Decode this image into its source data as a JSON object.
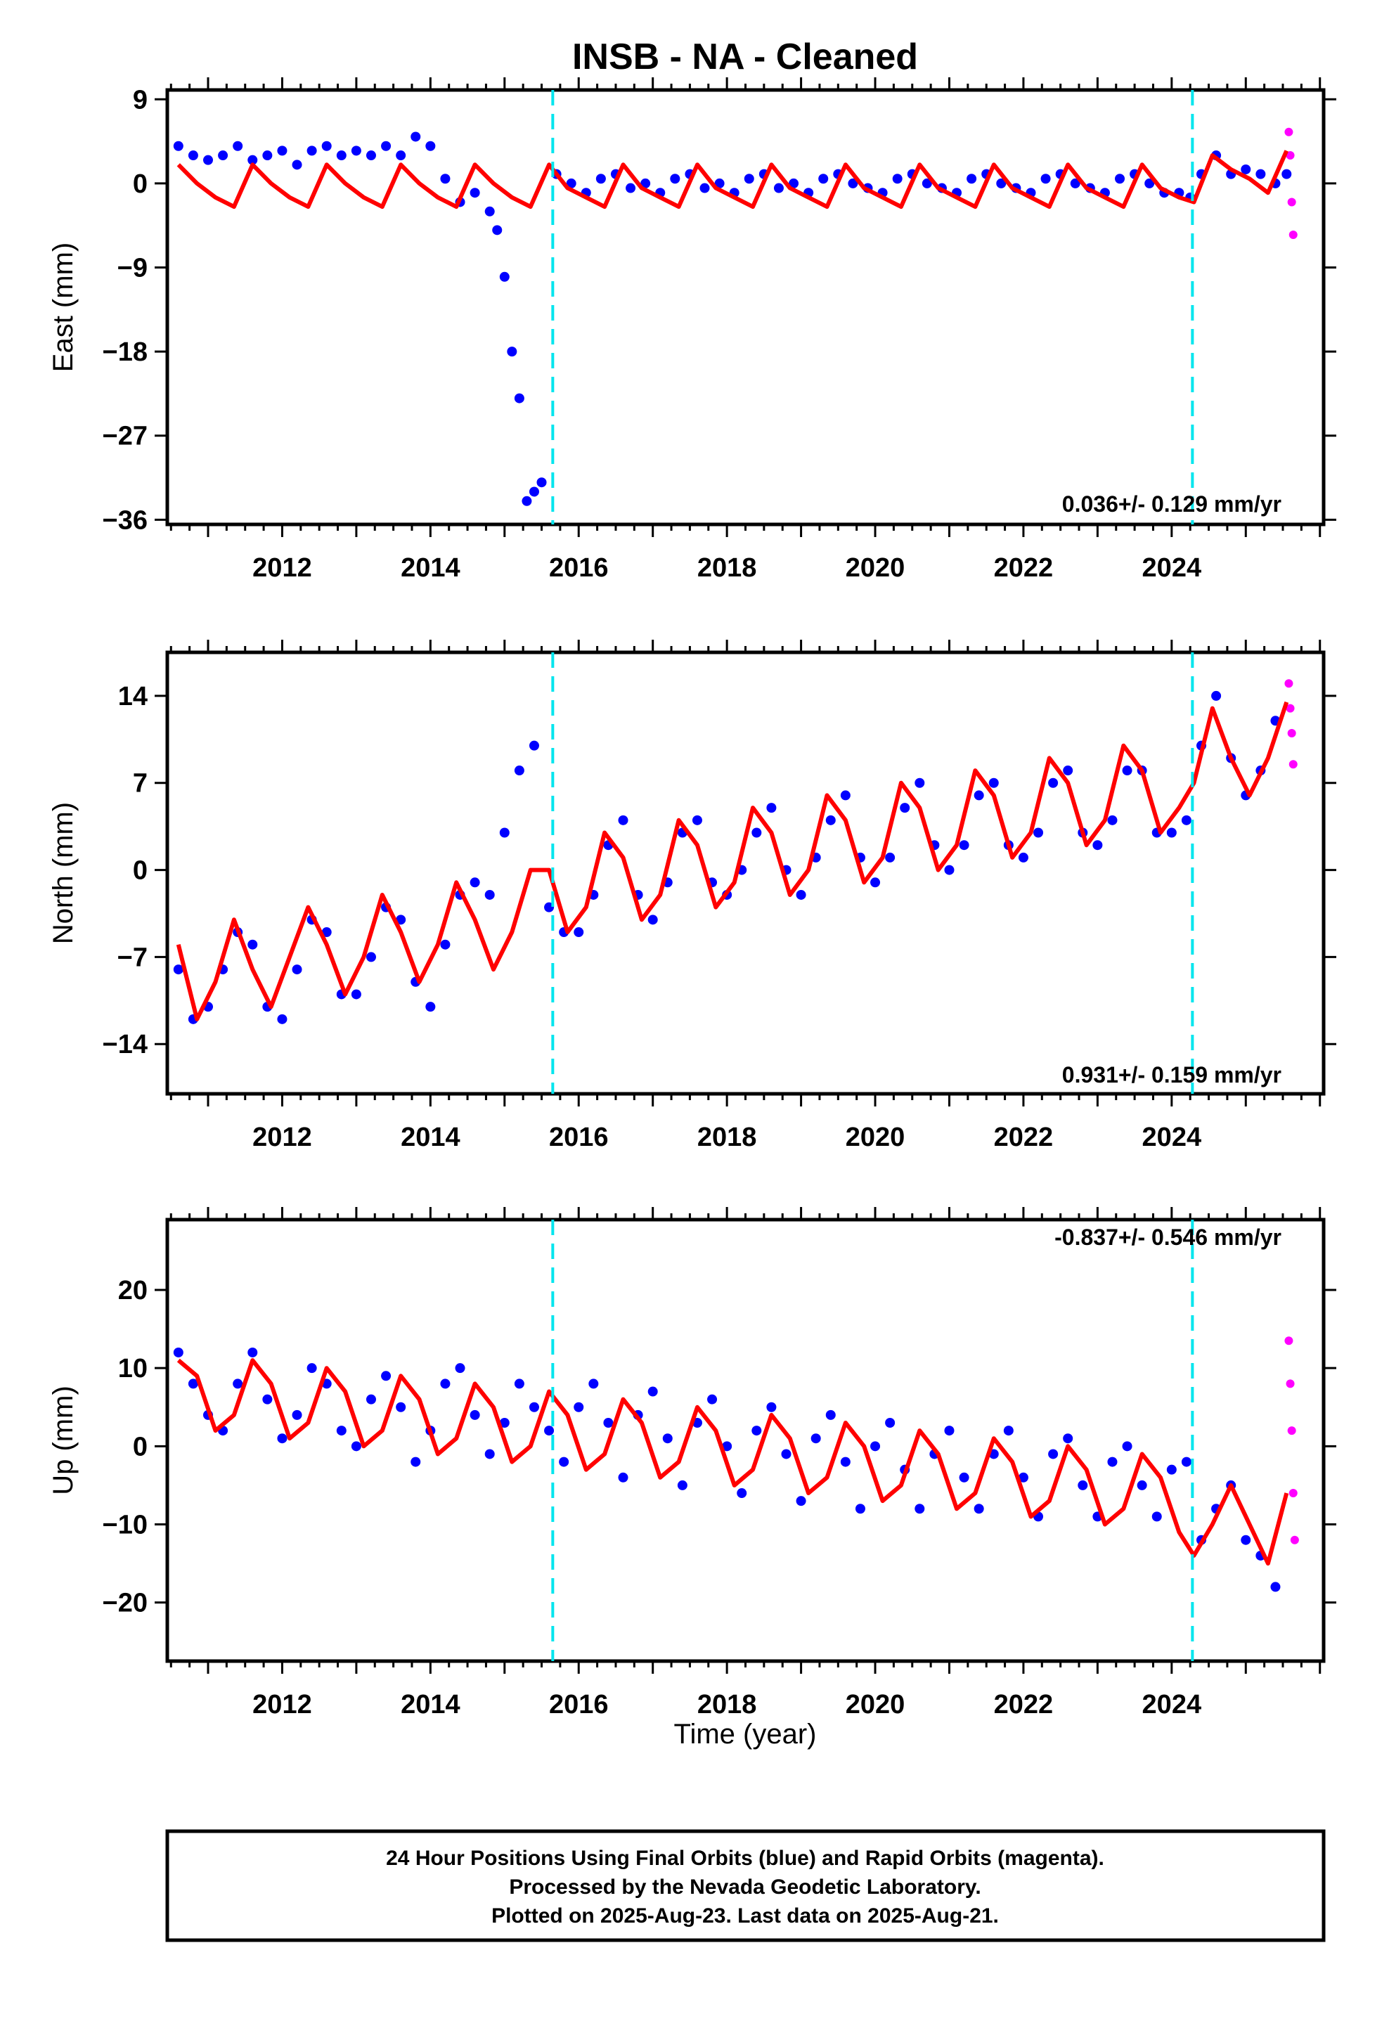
{
  "title": "INSB  - NA - Cleaned",
  "colors": {
    "final_orbits": "#0000ff",
    "rapid_orbits": "#ff00ff",
    "model": "#ff0000",
    "steps": "#00e5ee",
    "frame": "#000000"
  },
  "chart_data": [
    {
      "type": "scatter",
      "name": "east",
      "ylabel": "East (mm)",
      "xlim": [
        2010.45,
        2026.05
      ],
      "ylim": [
        -36.5,
        10
      ],
      "yticks": [
        9,
        0,
        -9,
        -18,
        -27,
        -36
      ],
      "xticks": [
        2012,
        2014,
        2016,
        2018,
        2020,
        2022,
        2024
      ],
      "xticklabels": [
        "2012",
        "2014",
        "2016",
        "2018",
        "2020",
        "2022",
        "2024"
      ],
      "yticklabels": [
        "9",
        "0",
        "−9",
        "−18",
        "−27",
        "−36"
      ],
      "rate_label": "0.036+/- 0.129 mm/yr",
      "steps": [
        2015.65,
        2024.28
      ],
      "final_orbits": {
        "x": [
          2010.6,
          2010.8,
          2011.0,
          2011.2,
          2011.4,
          2011.6,
          2011.8,
          2012.0,
          2012.2,
          2012.4,
          2012.6,
          2012.8,
          2013.0,
          2013.2,
          2013.4,
          2013.6,
          2013.8,
          2014.0,
          2014.2,
          2014.4,
          2014.6,
          2014.8,
          2014.9,
          2015.0,
          2015.1,
          2015.2,
          2015.3,
          2015.4,
          2015.5,
          2015.7,
          2015.9,
          2016.1,
          2016.3,
          2016.5,
          2016.7,
          2016.9,
          2017.1,
          2017.3,
          2017.5,
          2017.7,
          2017.9,
          2018.1,
          2018.3,
          2018.5,
          2018.7,
          2018.9,
          2019.1,
          2019.3,
          2019.5,
          2019.7,
          2019.9,
          2020.1,
          2020.3,
          2020.5,
          2020.7,
          2020.9,
          2021.1,
          2021.3,
          2021.5,
          2021.7,
          2021.9,
          2022.1,
          2022.3,
          2022.5,
          2022.7,
          2022.9,
          2023.1,
          2023.3,
          2023.5,
          2023.7,
          2023.9,
          2024.1,
          2024.25,
          2024.4,
          2024.6,
          2024.8,
          2025.0,
          2025.2,
          2025.4,
          2025.55
        ],
        "y": [
          4,
          3,
          2.5,
          3,
          4,
          2.5,
          3,
          3.5,
          2,
          3.5,
          4,
          3,
          3.5,
          3,
          4,
          3,
          5,
          4,
          0.5,
          -2,
          -1,
          -3,
          -5,
          -10,
          -18,
          -23,
          -34,
          -33,
          -32,
          1,
          0,
          -1,
          0.5,
          1,
          -0.5,
          0,
          -1,
          0.5,
          1,
          -0.5,
          0,
          -1,
          0.5,
          1,
          -0.5,
          0,
          -1,
          0.5,
          1,
          0,
          -0.5,
          -1,
          0.5,
          1,
          0,
          -0.5,
          -1,
          0.5,
          1,
          0,
          -0.5,
          -1,
          0.5,
          1,
          0,
          -0.5,
          -1,
          0.5,
          1,
          0,
          -1,
          -1,
          -1.5,
          1,
          3,
          1,
          1.5,
          1,
          0,
          1
        ]
      },
      "rapid_orbits": {
        "x": [
          2025.58,
          2025.6,
          2025.62,
          2025.64
        ],
        "y": [
          5.5,
          3,
          -2,
          -5.5
        ]
      },
      "model": {
        "x": [
          2010.6,
          2010.85,
          2011.1,
          2011.35,
          2011.6,
          2011.85,
          2012.1,
          2012.35,
          2012.6,
          2012.85,
          2013.1,
          2013.35,
          2013.6,
          2013.85,
          2014.1,
          2014.35,
          2014.6,
          2014.85,
          2015.1,
          2015.35,
          2015.6,
          2015.85,
          2016.1,
          2016.35,
          2016.6,
          2016.85,
          2017.1,
          2017.35,
          2017.6,
          2017.85,
          2018.1,
          2018.35,
          2018.6,
          2018.85,
          2019.1,
          2019.35,
          2019.6,
          2019.85,
          2020.1,
          2020.35,
          2020.6,
          2020.85,
          2021.1,
          2021.35,
          2021.6,
          2021.85,
          2022.1,
          2022.35,
          2022.6,
          2022.85,
          2023.1,
          2023.35,
          2023.6,
          2023.85,
          2024.1,
          2024.3,
          2024.55,
          2024.8,
          2025.05,
          2025.3,
          2025.55
        ],
        "y": [
          2,
          0,
          -1.5,
          -2.5,
          2,
          0,
          -1.5,
          -2.5,
          2,
          0,
          -1.5,
          -2.5,
          2,
          0,
          -1.5,
          -2.5,
          2,
          0,
          -1.5,
          -2.5,
          2,
          -0.5,
          -1.5,
          -2.5,
          2,
          -0.5,
          -1.5,
          -2.5,
          2,
          -0.5,
          -1.5,
          -2.5,
          2,
          -0.5,
          -1.5,
          -2.5,
          2,
          -0.5,
          -1.5,
          -2.5,
          2,
          -0.5,
          -1.5,
          -2.5,
          2,
          -0.5,
          -1.5,
          -2.5,
          2,
          -0.5,
          -1.5,
          -2.5,
          2,
          -0.5,
          -1.5,
          -2,
          3,
          1.5,
          0.5,
          -1,
          3.5
        ]
      }
    },
    {
      "type": "scatter",
      "name": "north",
      "ylabel": "North (mm)",
      "xlim": [
        2010.45,
        2026.05
      ],
      "ylim": [
        -18,
        17.5
      ],
      "yticks": [
        14,
        7,
        0,
        -7,
        -14
      ],
      "xticks": [
        2012,
        2014,
        2016,
        2018,
        2020,
        2022,
        2024
      ],
      "xticklabels": [
        "2012",
        "2014",
        "2016",
        "2018",
        "2020",
        "2022",
        "2024"
      ],
      "yticklabels": [
        "14",
        "7",
        "0",
        "−7",
        "−14"
      ],
      "rate_label": "0.931+/- 0.159 mm/yr",
      "steps": [
        2015.65,
        2024.28
      ],
      "final_orbits": {
        "x": [
          2010.6,
          2010.8,
          2011.0,
          2011.2,
          2011.4,
          2011.6,
          2011.8,
          2012.0,
          2012.2,
          2012.4,
          2012.6,
          2012.8,
          2013.0,
          2013.2,
          2013.4,
          2013.6,
          2013.8,
          2014.0,
          2014.2,
          2014.4,
          2014.6,
          2014.8,
          2015.0,
          2015.2,
          2015.4,
          2015.6,
          2015.8,
          2016.0,
          2016.2,
          2016.4,
          2016.6,
          2016.8,
          2017.0,
          2017.2,
          2017.4,
          2017.6,
          2017.8,
          2018.0,
          2018.2,
          2018.4,
          2018.6,
          2018.8,
          2019.0,
          2019.2,
          2019.4,
          2019.6,
          2019.8,
          2020.0,
          2020.2,
          2020.4,
          2020.6,
          2020.8,
          2021.0,
          2021.2,
          2021.4,
          2021.6,
          2021.8,
          2022.0,
          2022.2,
          2022.4,
          2022.6,
          2022.8,
          2023.0,
          2023.2,
          2023.4,
          2023.6,
          2023.8,
          2024.0,
          2024.2,
          2024.4,
          2024.6,
          2024.8,
          2025.0,
          2025.2,
          2025.4
        ],
        "y": [
          -8,
          -12,
          -11,
          -8,
          -5,
          -6,
          -11,
          -12,
          -8,
          -4,
          -5,
          -10,
          -10,
          -7,
          -3,
          -4,
          -9,
          -11,
          -6,
          -2,
          -1,
          -2,
          3,
          8,
          10,
          -3,
          -5,
          -5,
          -2,
          2,
          4,
          -2,
          -4,
          -1,
          3,
          4,
          -1,
          -2,
          0,
          3,
          5,
          0,
          -2,
          1,
          4,
          6,
          1,
          -1,
          1,
          5,
          7,
          2,
          0,
          2,
          6,
          7,
          2,
          1,
          3,
          7,
          8,
          3,
          2,
          4,
          8,
          8,
          3,
          3,
          4,
          10,
          14,
          9,
          6,
          8,
          12
        ]
      },
      "rapid_orbits": {
        "x": [
          2025.58,
          2025.6,
          2025.62,
          2025.64
        ],
        "y": [
          15,
          13,
          11,
          8.5
        ]
      },
      "model": {
        "x": [
          2010.6,
          2010.85,
          2011.1,
          2011.35,
          2011.6,
          2011.85,
          2012.1,
          2012.35,
          2012.6,
          2012.85,
          2013.1,
          2013.35,
          2013.6,
          2013.85,
          2014.1,
          2014.35,
          2014.6,
          2014.85,
          2015.1,
          2015.35,
          2015.6,
          2015.85,
          2016.1,
          2016.35,
          2016.6,
          2016.85,
          2017.1,
          2017.35,
          2017.6,
          2017.85,
          2018.1,
          2018.35,
          2018.6,
          2018.85,
          2019.1,
          2019.35,
          2019.6,
          2019.85,
          2020.1,
          2020.35,
          2020.6,
          2020.85,
          2021.1,
          2021.35,
          2021.6,
          2021.85,
          2022.1,
          2022.35,
          2022.6,
          2022.85,
          2023.1,
          2023.35,
          2023.6,
          2023.85,
          2024.1,
          2024.3,
          2024.55,
          2024.8,
          2025.05,
          2025.3,
          2025.55
        ],
        "y": [
          -6,
          -12,
          -9,
          -4,
          -8,
          -11,
          -7,
          -3,
          -6,
          -10,
          -7,
          -2,
          -5,
          -9,
          -6,
          -1,
          -4,
          -8,
          -5,
          0,
          0,
          -5,
          -3,
          3,
          1,
          -4,
          -2,
          4,
          2,
          -3,
          -1,
          5,
          3,
          -2,
          0,
          6,
          4,
          -1,
          1,
          7,
          5,
          0,
          2,
          8,
          6,
          1,
          3,
          9,
          7,
          2,
          4,
          10,
          8,
          3,
          5,
          7,
          13,
          9,
          6,
          9,
          13.5
        ]
      }
    },
    {
      "type": "scatter",
      "name": "up",
      "ylabel": "Up (mm)",
      "xlim": [
        2010.45,
        2026.05
      ],
      "ylim": [
        -27.5,
        29
      ],
      "yticks": [
        20,
        10,
        0,
        -10,
        -20
      ],
      "xticks": [
        2012,
        2014,
        2016,
        2018,
        2020,
        2022,
        2024
      ],
      "xticklabels": [
        "2012",
        "2014",
        "2016",
        "2018",
        "2020",
        "2022",
        "2024"
      ],
      "yticklabels": [
        "20",
        "10",
        "0",
        "−10",
        "−20"
      ],
      "xlabel": "Time (year)",
      "rate_label": "-0.837+/- 0.546 mm/yr",
      "steps": [
        2015.65,
        2024.28
      ],
      "final_orbits": {
        "x": [
          2010.6,
          2010.8,
          2011.0,
          2011.2,
          2011.4,
          2011.6,
          2011.8,
          2012.0,
          2012.2,
          2012.4,
          2012.6,
          2012.8,
          2013.0,
          2013.2,
          2013.4,
          2013.6,
          2013.8,
          2014.0,
          2014.2,
          2014.4,
          2014.6,
          2014.8,
          2015.0,
          2015.2,
          2015.4,
          2015.6,
          2015.8,
          2016.0,
          2016.2,
          2016.4,
          2016.6,
          2016.8,
          2017.0,
          2017.2,
          2017.4,
          2017.6,
          2017.8,
          2018.0,
          2018.2,
          2018.4,
          2018.6,
          2018.8,
          2019.0,
          2019.2,
          2019.4,
          2019.6,
          2019.8,
          2020.0,
          2020.2,
          2020.4,
          2020.6,
          2020.8,
          2021.0,
          2021.2,
          2021.4,
          2021.6,
          2021.8,
          2022.0,
          2022.2,
          2022.4,
          2022.6,
          2022.8,
          2023.0,
          2023.2,
          2023.4,
          2023.6,
          2023.8,
          2024.0,
          2024.2,
          2024.4,
          2024.6,
          2024.8,
          2025.0,
          2025.2,
          2025.4
        ],
        "y": [
          12,
          8,
          4,
          2,
          8,
          12,
          6,
          1,
          4,
          10,
          8,
          2,
          0,
          6,
          9,
          5,
          -2,
          2,
          8,
          10,
          4,
          -1,
          3,
          8,
          5,
          2,
          -2,
          5,
          8,
          3,
          -4,
          4,
          7,
          1,
          -5,
          3,
          6,
          0,
          -6,
          2,
          5,
          -1,
          -7,
          1,
          4,
          -2,
          -8,
          0,
          3,
          -3,
          -8,
          -1,
          2,
          -4,
          -8,
          -1,
          2,
          -4,
          -9,
          -1,
          1,
          -5,
          -9,
          -2,
          0,
          -5,
          -9,
          -3,
          -2,
          -12,
          -8,
          -5,
          -12,
          -14,
          -18
        ]
      },
      "rapid_orbits": {
        "x": [
          2025.58,
          2025.6,
          2025.62,
          2025.64,
          2025.66
        ],
        "y": [
          13.5,
          8,
          2,
          -6,
          -12
        ]
      },
      "model": {
        "x": [
          2010.6,
          2010.85,
          2011.1,
          2011.35,
          2011.6,
          2011.85,
          2012.1,
          2012.35,
          2012.6,
          2012.85,
          2013.1,
          2013.35,
          2013.6,
          2013.85,
          2014.1,
          2014.35,
          2014.6,
          2014.85,
          2015.1,
          2015.35,
          2015.6,
          2015.85,
          2016.1,
          2016.35,
          2016.6,
          2016.85,
          2017.1,
          2017.35,
          2017.6,
          2017.85,
          2018.1,
          2018.35,
          2018.6,
          2018.85,
          2019.1,
          2019.35,
          2019.6,
          2019.85,
          2020.1,
          2020.35,
          2020.6,
          2020.85,
          2021.1,
          2021.35,
          2021.6,
          2021.85,
          2022.1,
          2022.35,
          2022.6,
          2022.85,
          2023.1,
          2023.35,
          2023.6,
          2023.85,
          2024.1,
          2024.3,
          2024.55,
          2024.8,
          2025.05,
          2025.3,
          2025.55
        ],
        "y": [
          11,
          9,
          2,
          4,
          11,
          8,
          1,
          3,
          10,
          7,
          0,
          2,
          9,
          6,
          -1,
          1,
          8,
          5,
          -2,
          0,
          7,
          4,
          -3,
          -1,
          6,
          3,
          -4,
          -2,
          5,
          2,
          -5,
          -3,
          4,
          1,
          -6,
          -4,
          3,
          0,
          -7,
          -5,
          2,
          -1,
          -8,
          -6,
          1,
          -2,
          -9,
          -7,
          0,
          -3,
          -10,
          -8,
          -1,
          -4,
          -11,
          -14,
          -10,
          -5,
          -10,
          -15,
          -6
        ]
      }
    }
  ],
  "footer": {
    "line1": "24 Hour Positions Using Final Orbits (blue) and Rapid Orbits (magenta).",
    "line2": "Processed by the Nevada Geodetic Laboratory.",
    "line3": "Plotted on 2025-Aug-23. Last data on 2025-Aug-21."
  }
}
